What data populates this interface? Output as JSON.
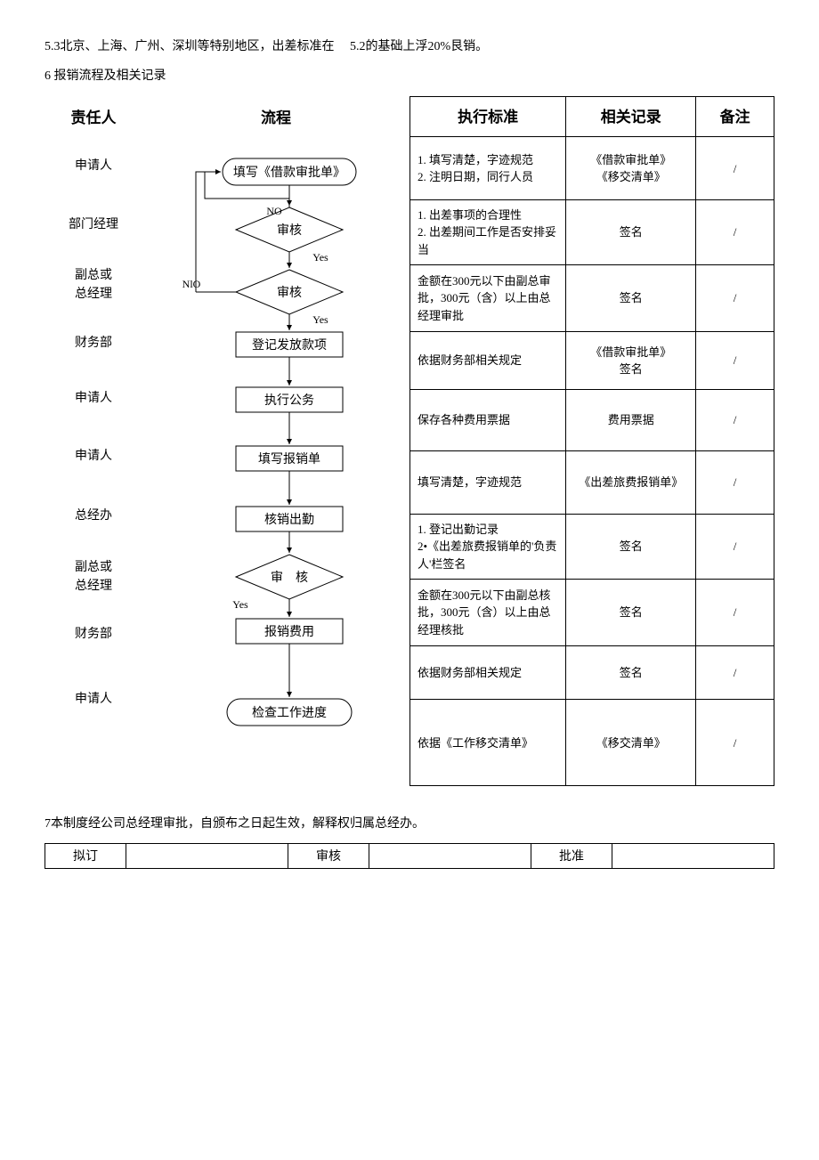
{
  "intro": {
    "line1_a": "5.3北京、上海、广州、深圳等特别地区，出差标准在",
    "line1_b": "5.2的基础上浮20%艮销。",
    "line2": "6 报销流程及相关记录"
  },
  "headers": {
    "responsible": "责任人",
    "flow": "流程",
    "standard": "执行标准",
    "record": "相关记录",
    "note": "备注"
  },
  "responsibles": [
    "申请人",
    "部门经理",
    "副总或\n总经理",
    "财务部",
    "申请人",
    "申请人",
    "总经办",
    "副总或\n总经理",
    "财务部",
    "申请人"
  ],
  "flow_boxes": {
    "fill_loan": "填写《借款审批单》",
    "audit1": "审核",
    "audit2": "审核",
    "register_pay": "登记发放款项",
    "execute": "执行公务",
    "fill_reimb": "填写报销单",
    "verify_attend": "核销出勤",
    "audit3": "审　核",
    "reimb_fee": "报销费用",
    "check_progress": "检查工作进度",
    "no": "NO",
    "yes": "Yes",
    "nlo": "NlO"
  },
  "rows": [
    {
      "std": "1. 填写清楚，字迹规范\n2. 注明日期，同行人员",
      "rec": "《借款审批单》\n《移交清单》",
      "note": "/"
    },
    {
      "std": "1. 出差事项的合理性\n2. 出差期间工作是否安排妥当",
      "rec": "签名",
      "note": "/"
    },
    {
      "std": "金额在300元以下由副总审批，300元（含）以上由总经理审批",
      "rec": "签名",
      "note": "/"
    },
    {
      "std": "依据财务部相关规定",
      "rec": "《借款审批单》\n签名",
      "note": "/"
    },
    {
      "std": "保存各种费用票据",
      "rec": "费用票据",
      "note": "/"
    },
    {
      "std": "填写清楚，字迹规范",
      "rec": "《出差旅费报销单》",
      "note": "/"
    },
    {
      "std": "1. 登记出勤记录\n2•《出差旅费报销单的'负责人'栏签名",
      "rec": "签名",
      "note": "/"
    },
    {
      "std": "金额在300元以下由副总核批，300元（含）以上由总经理核批",
      "rec": "签名",
      "note": "/"
    },
    {
      "std": "依据财务部相关规定",
      "rec": "签名",
      "note": "/"
    },
    {
      "std": "依据《工作移交清单》",
      "rec": "《移交清单》",
      "note": "/"
    }
  ],
  "footer": {
    "line": "7本制度经公司总经理审批，自颁布之日起生效，解释权归属总经办。",
    "draft": "拟订",
    "audit": "审核",
    "approve": "批准"
  },
  "style": {
    "stroke": "#000000",
    "fill": "#ffffff",
    "font_size_box": 14,
    "font_family": "SimSun"
  }
}
